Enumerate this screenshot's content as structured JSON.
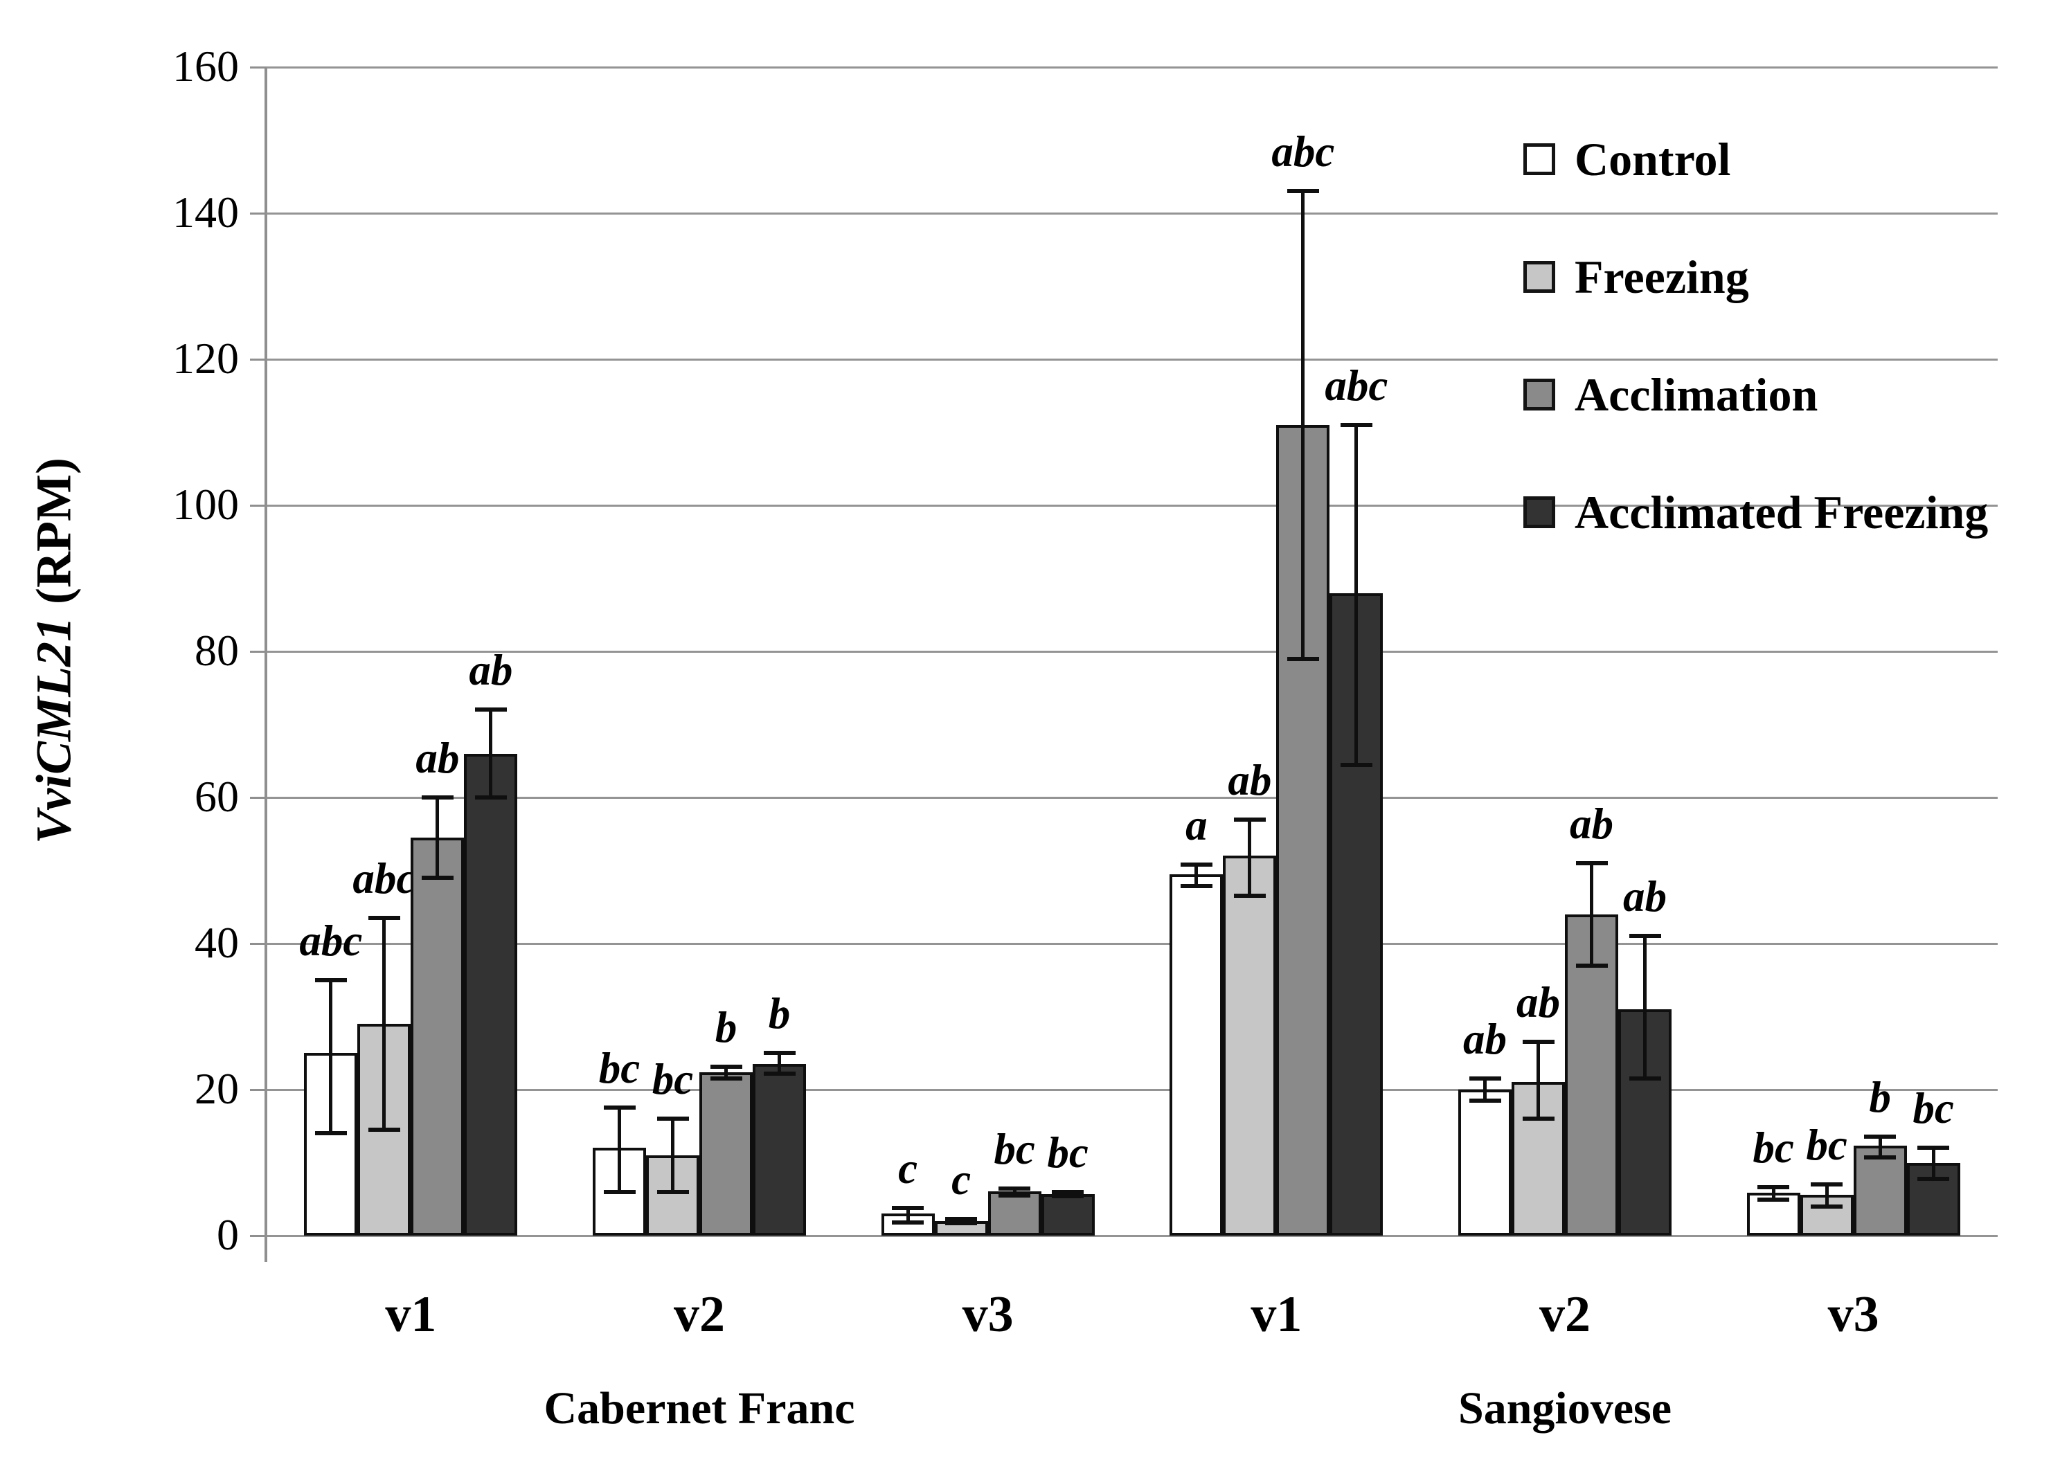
{
  "figure": {
    "background": "#ffffff"
  },
  "y_axis": {
    "title_italic": "VviCML21",
    "title_rest": " (RPM)",
    "ticks": [
      0,
      20,
      40,
      60,
      80,
      100,
      120,
      140,
      160
    ]
  },
  "x_axis": {
    "varieties": [
      {
        "name": "Cabernet Franc",
        "vines": [
          "v1",
          "v2",
          "v3"
        ]
      },
      {
        "name": "Sangiovese",
        "vines": [
          "v1",
          "v2",
          "v3"
        ]
      }
    ]
  },
  "legend": {
    "items": [
      {
        "label": "Control",
        "color": "#ffffff"
      },
      {
        "label": "Freezing",
        "color": "#c6c6c6"
      },
      {
        "label": "Acclimation",
        "color": "#8a8a8a"
      },
      {
        "label": "Acclimated Freezing",
        "color": "#333333"
      }
    ]
  },
  "chart_data": {
    "type": "bar",
    "title": "",
    "ylabel": "VviCML21 (RPM)",
    "xlabel": "",
    "ylim": [
      0,
      160
    ],
    "ytick_step": 20,
    "grid": true,
    "legend_position": "top-right",
    "series": [
      "Control",
      "Freezing",
      "Acclimation",
      "Acclimated Freezing"
    ],
    "colors": [
      "#ffffff",
      "#c6c6c6",
      "#8a8a8a",
      "#333333"
    ],
    "grid_color": "#949494",
    "error_bar_color": "#0f0f0f",
    "groups": [
      {
        "variety": "Cabernet Franc",
        "vine": "v1",
        "bars": [
          {
            "treatment": "Control",
            "value": 25,
            "err_plus": 10,
            "err_minus": 11,
            "letter": "abc"
          },
          {
            "treatment": "Freezing",
            "value": 29,
            "err_plus": 14.5,
            "err_minus": 14.5,
            "letter": "abc"
          },
          {
            "treatment": "Acclimation",
            "value": 54.5,
            "err_plus": 5.5,
            "err_minus": 5.5,
            "letter": "ab"
          },
          {
            "treatment": "Acclimated Freezing",
            "value": 66,
            "err_plus": 6,
            "err_minus": 6,
            "letter": "ab"
          }
        ]
      },
      {
        "variety": "Cabernet Franc",
        "vine": "v2",
        "bars": [
          {
            "treatment": "Control",
            "value": 12,
            "err_plus": 5.5,
            "err_minus": 6,
            "letter": "bc"
          },
          {
            "treatment": "Freezing",
            "value": 11,
            "err_plus": 5,
            "err_minus": 5,
            "letter": "bc"
          },
          {
            "treatment": "Acclimation",
            "value": 22.4,
            "err_plus": 0.7,
            "err_minus": 0.9,
            "letter": "b"
          },
          {
            "treatment": "Acclimated Freezing",
            "value": 23.5,
            "err_plus": 1.5,
            "err_minus": 1.3,
            "letter": "b"
          }
        ]
      },
      {
        "variety": "Cabernet Franc",
        "vine": "v3",
        "bars": [
          {
            "treatment": "Control",
            "value": 3,
            "err_plus": 0.8,
            "err_minus": 1.2,
            "letter": "c"
          },
          {
            "treatment": "Freezing",
            "value": 2,
            "err_plus": 0.3,
            "err_minus": 0.3,
            "letter": "c"
          },
          {
            "treatment": "Acclimation",
            "value": 6.1,
            "err_plus": 0.3,
            "err_minus": 0.6,
            "letter": "bc"
          },
          {
            "treatment": "Acclimated Freezing",
            "value": 5.7,
            "err_plus": 0.3,
            "err_minus": 0.3,
            "letter": "bc"
          }
        ]
      },
      {
        "variety": "Sangiovese",
        "vine": "v1",
        "bars": [
          {
            "treatment": "Control",
            "value": 49.5,
            "err_plus": 1.3,
            "err_minus": 1.6,
            "letter": "a"
          },
          {
            "treatment": "Freezing",
            "value": 52,
            "err_plus": 5,
            "err_minus": 5.5,
            "letter": "ab"
          },
          {
            "treatment": "Acclimation",
            "value": 111,
            "err_plus": 32,
            "err_minus": 32,
            "letter": "abc"
          },
          {
            "treatment": "Acclimated Freezing",
            "value": 88,
            "err_plus": 23,
            "err_minus": 23.5,
            "letter": "abc"
          }
        ]
      },
      {
        "variety": "Sangiovese",
        "vine": "v2",
        "bars": [
          {
            "treatment": "Control",
            "value": 20,
            "err_plus": 1.5,
            "err_minus": 1.5,
            "letter": "ab"
          },
          {
            "treatment": "Freezing",
            "value": 21,
            "err_plus": 5.5,
            "err_minus": 5,
            "letter": "ab"
          },
          {
            "treatment": "Acclimation",
            "value": 44,
            "err_plus": 7,
            "err_minus": 7,
            "letter": "ab"
          },
          {
            "treatment": "Acclimated Freezing",
            "value": 31,
            "err_plus": 10,
            "err_minus": 9.5,
            "letter": "ab"
          }
        ]
      },
      {
        "variety": "Sangiovese",
        "vine": "v3",
        "bars": [
          {
            "treatment": "Control",
            "value": 5.9,
            "err_plus": 0.7,
            "err_minus": 1.0,
            "letter": "bc"
          },
          {
            "treatment": "Freezing",
            "value": 5.6,
            "err_plus": 1.4,
            "err_minus": 1.6,
            "letter": "bc"
          },
          {
            "treatment": "Acclimation",
            "value": 12.3,
            "err_plus": 1.3,
            "err_minus": 1.6,
            "letter": "b"
          },
          {
            "treatment": "Acclimated Freezing",
            "value": 10,
            "err_plus": 2,
            "err_minus": 2.2,
            "letter": "bc"
          }
        ]
      }
    ]
  }
}
